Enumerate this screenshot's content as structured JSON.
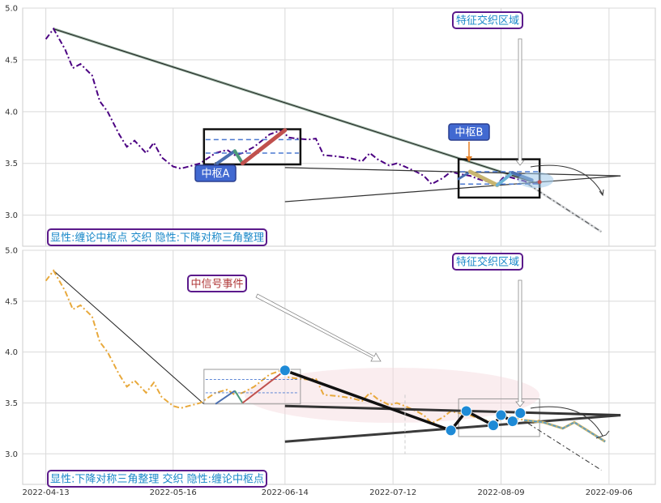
{
  "chart_data": [
    {
      "type": "line",
      "panel": "top",
      "ylim": [
        2.7,
        5.0
      ],
      "yticks": [
        "5.0",
        "4.5",
        "4.0",
        "3.5",
        "3.0"
      ],
      "series": [
        {
          "color": "#4b0082",
          "style": "dash-dot",
          "x": [
            "2022-04-13",
            "2022-04-15",
            "2022-04-18",
            "2022-04-20",
            "2022-04-22",
            "2022-04-25",
            "2022-04-27",
            "2022-04-29",
            "2022-05-02",
            "2022-05-04",
            "2022-05-06",
            "2022-05-09",
            "2022-05-11",
            "2022-05-13",
            "2022-05-16",
            "2022-05-18",
            "2022-05-20",
            "2022-05-23",
            "2022-05-25",
            "2022-05-27",
            "2022-05-30",
            "2022-06-01",
            "2022-06-03",
            "2022-06-06",
            "2022-06-08",
            "2022-06-10",
            "2022-06-13",
            "2022-06-15",
            "2022-06-17",
            "2022-06-20",
            "2022-06-22",
            "2022-06-24",
            "2022-06-27",
            "2022-06-29",
            "2022-07-01",
            "2022-07-04",
            "2022-07-06",
            "2022-07-08",
            "2022-07-11",
            "2022-07-13",
            "2022-07-15",
            "2022-07-18",
            "2022-07-20",
            "2022-07-22",
            "2022-07-25",
            "2022-07-27",
            "2022-07-29",
            "2022-08-01",
            "2022-08-03",
            "2022-08-05",
            "2022-08-08",
            "2022-08-10",
            "2022-08-12",
            "2022-08-15",
            "2022-08-17",
            "2022-08-19"
          ],
          "y": [
            4.7,
            4.8,
            4.6,
            4.42,
            4.46,
            4.35,
            4.1,
            4.0,
            3.78,
            3.66,
            3.72,
            3.6,
            3.7,
            3.56,
            3.47,
            3.45,
            3.47,
            3.5,
            3.55,
            3.6,
            3.63,
            3.58,
            3.6,
            3.66,
            3.72,
            3.78,
            3.82,
            3.75,
            3.74,
            3.73,
            3.74,
            3.58,
            3.57,
            3.56,
            3.55,
            3.52,
            3.6,
            3.54,
            3.48,
            3.5,
            3.47,
            3.42,
            3.38,
            3.3,
            3.36,
            3.42,
            3.4,
            3.38,
            3.35,
            3.33,
            3.3,
            3.38,
            3.36,
            3.33,
            3.3,
            3.33
          ]
        }
      ],
      "zhongshu": [
        {
          "label": "中枢A",
          "x": [
            "2022-05-24",
            "2022-06-18"
          ],
          "y": [
            3.33,
            3.63
          ],
          "outer_y": [
            3.49,
            3.83
          ],
          "inner_y": [
            3.6,
            3.73
          ]
        },
        {
          "label": "中枢B",
          "x": [
            "2022-07-29",
            "2022-08-19"
          ],
          "y": [
            3.28,
            3.42
          ],
          "outer_y": [
            3.17,
            3.54
          ],
          "inner_y": [
            3.3,
            3.42
          ]
        }
      ],
      "annotations": [
        "特征交织区域"
      ],
      "caption": "显性:缠论中枢点 交织 隐性:下降对称三角整理"
    },
    {
      "type": "line",
      "panel": "bottom",
      "ylim": [
        2.7,
        5.0
      ],
      "yticks": [
        "5.0",
        "4.5",
        "4.0",
        "3.5",
        "3.0"
      ],
      "xticks": [
        "2022-04-13",
        "2022-05-16",
        "2022-06-14",
        "2022-07-12",
        "2022-08-09",
        "2022-09-06"
      ],
      "series": [
        {
          "color": "#e8a93c",
          "style": "dash-dot",
          "x": [
            "2022-04-13",
            "2022-04-15",
            "2022-04-18",
            "2022-04-20",
            "2022-04-22",
            "2022-04-25",
            "2022-04-27",
            "2022-04-29",
            "2022-05-02",
            "2022-05-04",
            "2022-05-06",
            "2022-05-09",
            "2022-05-11",
            "2022-05-13",
            "2022-05-16",
            "2022-05-18",
            "2022-05-20",
            "2022-05-23",
            "2022-05-25",
            "2022-05-27",
            "2022-05-30",
            "2022-06-01",
            "2022-06-03",
            "2022-06-06",
            "2022-06-08",
            "2022-06-10",
            "2022-06-13",
            "2022-06-15",
            "2022-06-17",
            "2022-06-20",
            "2022-06-22",
            "2022-06-24",
            "2022-06-27",
            "2022-06-29",
            "2022-07-01",
            "2022-07-04",
            "2022-07-06",
            "2022-07-08",
            "2022-07-11",
            "2022-07-13",
            "2022-07-15",
            "2022-07-18",
            "2022-07-20",
            "2022-07-22",
            "2022-07-25",
            "2022-07-27",
            "2022-07-29",
            "2022-08-01",
            "2022-08-03",
            "2022-08-05",
            "2022-08-08",
            "2022-08-10",
            "2022-08-12",
            "2022-08-15",
            "2022-08-17",
            "2022-08-19"
          ],
          "y": [
            4.7,
            4.8,
            4.6,
            4.42,
            4.46,
            4.35,
            4.1,
            4.0,
            3.78,
            3.66,
            3.72,
            3.6,
            3.7,
            3.56,
            3.47,
            3.45,
            3.47,
            3.5,
            3.55,
            3.6,
            3.63,
            3.58,
            3.6,
            3.66,
            3.72,
            3.78,
            3.82,
            3.75,
            3.74,
            3.73,
            3.74,
            3.58,
            3.57,
            3.56,
            3.55,
            3.52,
            3.6,
            3.54,
            3.48,
            3.5,
            3.47,
            3.42,
            3.38,
            3.3,
            3.36,
            3.42,
            3.4,
            3.38,
            3.35,
            3.33,
            3.3,
            3.38,
            3.36,
            3.33,
            3.3,
            3.33
          ]
        }
      ],
      "annotations": [
        "中信号事件",
        "特征交织区域"
      ],
      "caption": "显性:下降对称三角整理 交织 隐性:缠论中枢点"
    }
  ]
}
